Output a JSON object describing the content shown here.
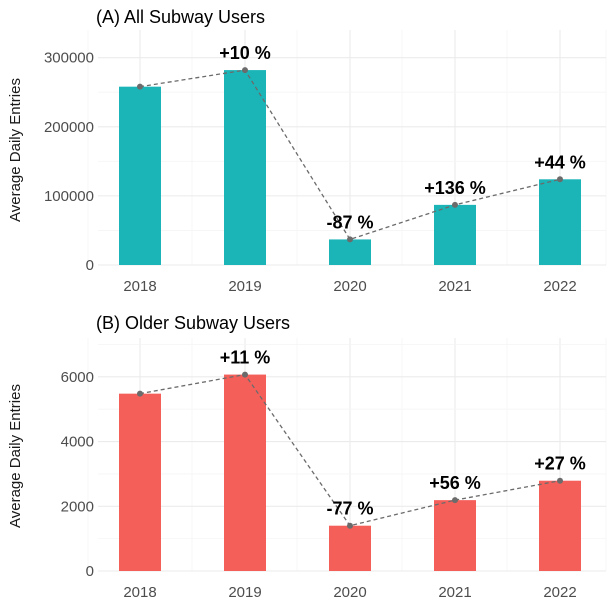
{
  "chart_data": [
    {
      "type": "bar",
      "title": "(A) All Subway Users",
      "xlabel": "",
      "ylabel": "Average Daily Entries",
      "categories": [
        "2018",
        "2019",
        "2020",
        "2021",
        "2022"
      ],
      "values": [
        258000,
        282000,
        37000,
        87000,
        124000
      ],
      "ylim": [
        0,
        340000
      ],
      "yticks": [
        0,
        100000,
        200000,
        300000
      ],
      "ytick_labels": [
        "0",
        "100000",
        "200000",
        "300000"
      ],
      "bar_color": "#1bb5b8",
      "trend_line": "dashed",
      "annotations": [
        "",
        "+10 %",
        "-87 %",
        "+136 %",
        "+44 %"
      ]
    },
    {
      "type": "bar",
      "title": "(B) Older Subway Users",
      "xlabel": "",
      "ylabel": "Average Daily Entries",
      "categories": [
        "2018",
        "2019",
        "2020",
        "2021",
        "2022"
      ],
      "values": [
        5480,
        6070,
        1400,
        2190,
        2790
      ],
      "ylim": [
        0,
        7200
      ],
      "yticks": [
        0,
        2000,
        4000,
        6000
      ],
      "ytick_labels": [
        "0",
        "2000",
        "4000",
        "6000"
      ],
      "bar_color": "#f45f5a",
      "trend_line": "dashed",
      "annotations": [
        "",
        "+11 %",
        "-77 %",
        "+56 %",
        "+27 %"
      ]
    }
  ]
}
